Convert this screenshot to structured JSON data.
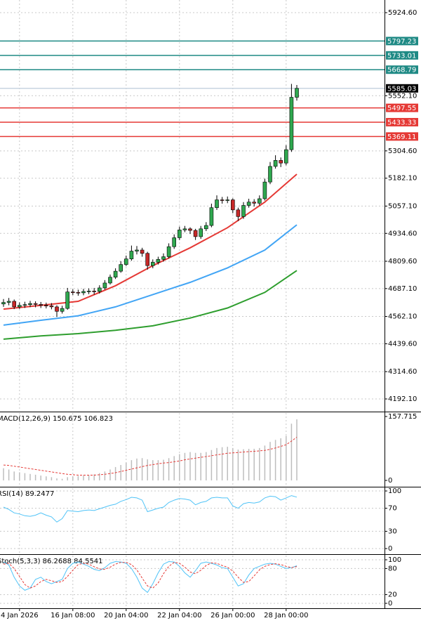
{
  "chart_data": [
    {
      "type": "candlestick",
      "categories": [
        null,
        null,
        null,
        "4 Jan 2026",
        null,
        null,
        null,
        null,
        null,
        null,
        null,
        null,
        null,
        "16 Jan 08:00",
        null,
        null,
        null,
        null,
        null,
        null,
        null,
        null,
        null,
        "20 Jan 04:00",
        null,
        null,
        null,
        null,
        null,
        null,
        null,
        null,
        null,
        "22 Jan 04:00",
        null,
        null,
        null,
        null,
        null,
        null,
        null,
        null,
        null,
        "26 Jan 00:00",
        null,
        null,
        null,
        null,
        null,
        null,
        null,
        null,
        null,
        "28 Jan 00:00",
        null,
        null
      ],
      "open": [
        4618,
        4625,
        4630,
        4605,
        4612,
        4615,
        4620,
        4616,
        4612,
        4610,
        4605,
        4585,
        4598,
        4672,
        4670,
        4668,
        4674,
        4676,
        4674,
        4690,
        4712,
        4738,
        4765,
        4795,
        4820,
        4855,
        4860,
        4845,
        4790,
        4805,
        4818,
        4830,
        4875,
        4915,
        4950,
        4955,
        4948,
        4920,
        4955,
        4970,
        5050,
        5085,
        5082,
        5085,
        5040,
        5010,
        5060,
        5075,
        5070,
        5090,
        5165,
        5235,
        5262,
        5250,
        5310,
        5545
      ],
      "high": [
        4640,
        4645,
        4638,
        4625,
        4628,
        4632,
        4630,
        4627,
        4624,
        4622,
        4612,
        4610,
        4690,
        4684,
        4682,
        4686,
        4688,
        4690,
        4702,
        4725,
        4750,
        4778,
        4810,
        4835,
        4880,
        4878,
        4870,
        4852,
        4818,
        4830,
        4845,
        4890,
        4930,
        4965,
        4968,
        4962,
        4955,
        4968,
        4985,
        5068,
        5105,
        5098,
        5100,
        5092,
        5050,
        5075,
        5090,
        5088,
        5105,
        5180,
        5255,
        5285,
        5275,
        5330,
        5605,
        5600
      ],
      "low": [
        4605,
        4612,
        4595,
        4596,
        4600,
        4604,
        4603,
        4600,
        4598,
        4594,
        4560,
        4575,
        4592,
        4658,
        4655,
        4657,
        4662,
        4660,
        4665,
        4682,
        4705,
        4730,
        4758,
        4788,
        4812,
        4840,
        4830,
        4772,
        4778,
        4795,
        4808,
        4822,
        4865,
        4905,
        4940,
        4932,
        4905,
        4910,
        4945,
        4962,
        5040,
        5068,
        5070,
        5025,
        4990,
        5000,
        5050,
        5055,
        5060,
        5082,
        5155,
        5225,
        5232,
        5240,
        5300,
        5530
      ],
      "close": [
        4625,
        4630,
        4605,
        4612,
        4615,
        4620,
        4616,
        4612,
        4610,
        4605,
        4585,
        4598,
        4672,
        4670,
        4668,
        4674,
        4676,
        4674,
        4690,
        4712,
        4738,
        4765,
        4795,
        4820,
        4855,
        4860,
        4845,
        4790,
        4805,
        4818,
        4830,
        4875,
        4915,
        4950,
        4955,
        4948,
        4920,
        4955,
        4970,
        5050,
        5085,
        5082,
        5085,
        5040,
        5010,
        5060,
        5075,
        5070,
        5090,
        5165,
        5235,
        5262,
        5250,
        5310,
        5545,
        5585.03
      ],
      "up_color": "#2fa84f",
      "down_color": "#c62828",
      "series": [
        {
          "color": "#e53935",
          "x": [
            0,
            7,
            14,
            21,
            28,
            35,
            42,
            49,
            55
          ],
          "values": [
            4595,
            4612,
            4630,
            4700,
            4790,
            4870,
            4960,
            5075,
            5200
          ]
        },
        {
          "color": "#42a5f5",
          "x": [
            0,
            7,
            14,
            21,
            28,
            35,
            42,
            49,
            55
          ],
          "values": [
            4523,
            4545,
            4565,
            4605,
            4660,
            4715,
            4780,
            4860,
            4973
          ]
        },
        {
          "color": "#2e9e2e",
          "x": [
            0,
            7,
            14,
            21,
            28,
            35,
            42,
            49,
            55
          ],
          "values": [
            4460,
            4475,
            4485,
            4500,
            4520,
            4555,
            4600,
            4670,
            4768
          ]
        }
      ],
      "levels": [
        {
          "value": 5797.23,
          "color": "#1f8a85",
          "label_color": "#1f8a85"
        },
        {
          "value": 5733.01,
          "color": "#1f8a85",
          "label_color": "#1f8a85"
        },
        {
          "value": 5668.79,
          "color": "#1f8a85",
          "label_color": "#1f8a85"
        },
        {
          "value": 5585.03,
          "color": "#c8d4e0",
          "label_color": "#000000"
        },
        {
          "value": 5497.55,
          "color": "#e53935",
          "label_color": "#e53935"
        },
        {
          "value": 5433.33,
          "color": "#e53935",
          "label_color": "#e53935"
        },
        {
          "value": 5369.11,
          "color": "#e53935",
          "label_color": "#e53935"
        }
      ],
      "ylim": [
        4138.5,
        5981.3
      ],
      "yticks": [
        {
          "value": 5924.6,
          "label": "5924.60"
        },
        {
          "value": 5552.1,
          "label": "5552.10"
        },
        {
          "value": 5304.6,
          "label": "5304.60"
        },
        {
          "value": 5182.1,
          "label": "5182.10"
        },
        {
          "value": 5057.1,
          "label": "5057.10"
        },
        {
          "value": 4934.6,
          "label": "4934.60"
        },
        {
          "value": 4809.6,
          "label": "4809.60"
        },
        {
          "value": 4687.1,
          "label": "4687.10"
        },
        {
          "value": 4562.1,
          "label": "4562.10"
        },
        {
          "value": 4439.6,
          "label": "4439.60"
        },
        {
          "value": 4314.6,
          "label": "4314.60"
        },
        {
          "value": 4192.1,
          "label": "4192.10"
        }
      ],
      "grid": true
    },
    {
      "type": "line",
      "title": "MACD(12,26,9) 150.675 106.823",
      "series": [
        {
          "style": "bar",
          "color": "#bdbdbd",
          "values": [
            30,
            27,
            22,
            20,
            18,
            16,
            14,
            12,
            10,
            8,
            5,
            4,
            8,
            10,
            11,
            12,
            13,
            15,
            18,
            22,
            27,
            33,
            38,
            44,
            50,
            54,
            55,
            52,
            50,
            50,
            51,
            55,
            60,
            65,
            68,
            70,
            68,
            68,
            70,
            75,
            80,
            82,
            83,
            80,
            76,
            77,
            78,
            78,
            80,
            86,
            95,
            100,
            104,
            110,
            140,
            150.675
          ]
        },
        {
          "style": "dashed",
          "color": "#e53935",
          "values": [
            38,
            37,
            35,
            33,
            31,
            29,
            27,
            25,
            23,
            21,
            19,
            17,
            15,
            14,
            13,
            13,
            13,
            13,
            14,
            15,
            17,
            19,
            22,
            25,
            28,
            31,
            34,
            37,
            39,
            41,
            43,
            44,
            46,
            48,
            51,
            53,
            55,
            57,
            59,
            61,
            63,
            65,
            67,
            68,
            69,
            70,
            71,
            72,
            73,
            74,
            77,
            80,
            84,
            88,
            97,
            106.823
          ]
        }
      ],
      "ylim": [
        -13.9,
        166.4
      ],
      "yticks": [
        157.715,
        0
      ],
      "grid": false
    },
    {
      "type": "line",
      "title": "RSI(14) 89.2477",
      "series": [
        {
          "style": "solid",
          "color": "#4fc3f7",
          "values": [
            72,
            68,
            62,
            60,
            57,
            56,
            58,
            62,
            58,
            55,
            46,
            52,
            66,
            65,
            64,
            66,
            67,
            66,
            69,
            72,
            75,
            77,
            82,
            85,
            89,
            88,
            84,
            64,
            67,
            70,
            72,
            80,
            84,
            87,
            86,
            84,
            76,
            80,
            82,
            88,
            89,
            88,
            88,
            74,
            70,
            78,
            80,
            79,
            81,
            88,
            91,
            90,
            84,
            88,
            92,
            89.2477
          ]
        }
      ],
      "ylim": [
        -8.5,
        104.9
      ],
      "yticks": [
        100,
        70,
        30,
        0
      ],
      "grid": true
    },
    {
      "type": "line",
      "title": "Stoch(5,3,3) 86.2688 84.5541",
      "series": [
        {
          "style": "solid",
          "color": "#4fc3f7",
          "values": [
            95,
            88,
            60,
            40,
            30,
            35,
            55,
            60,
            50,
            45,
            50,
            55,
            80,
            92,
            95,
            90,
            85,
            78,
            75,
            82,
            92,
            96,
            95,
            92,
            80,
            60,
            35,
            25,
            45,
            70,
            90,
            96,
            95,
            85,
            70,
            60,
            75,
            92,
            95,
            92,
            88,
            82,
            80,
            60,
            40,
            45,
            65,
            80,
            85,
            90,
            92,
            90,
            85,
            80,
            82,
            86.2688
          ]
        },
        {
          "style": "dashed",
          "color": "#e53935",
          "values": [
            90,
            92,
            80,
            62,
            43,
            35,
            40,
            50,
            55,
            52,
            48,
            50,
            62,
            76,
            89,
            92,
            90,
            84,
            79,
            78,
            83,
            90,
            94,
            94,
            89,
            77,
            58,
            40,
            35,
            47,
            68,
            85,
            94,
            92,
            83,
            72,
            68,
            76,
            87,
            93,
            92,
            87,
            83,
            74,
            60,
            48,
            50,
            63,
            77,
            85,
            89,
            91,
            89,
            85,
            82,
            84.5541
          ]
        }
      ],
      "ylim": [
        -9.7,
        109.7
      ],
      "yticks": [
        100,
        80,
        20,
        0
      ],
      "grid": true
    }
  ]
}
